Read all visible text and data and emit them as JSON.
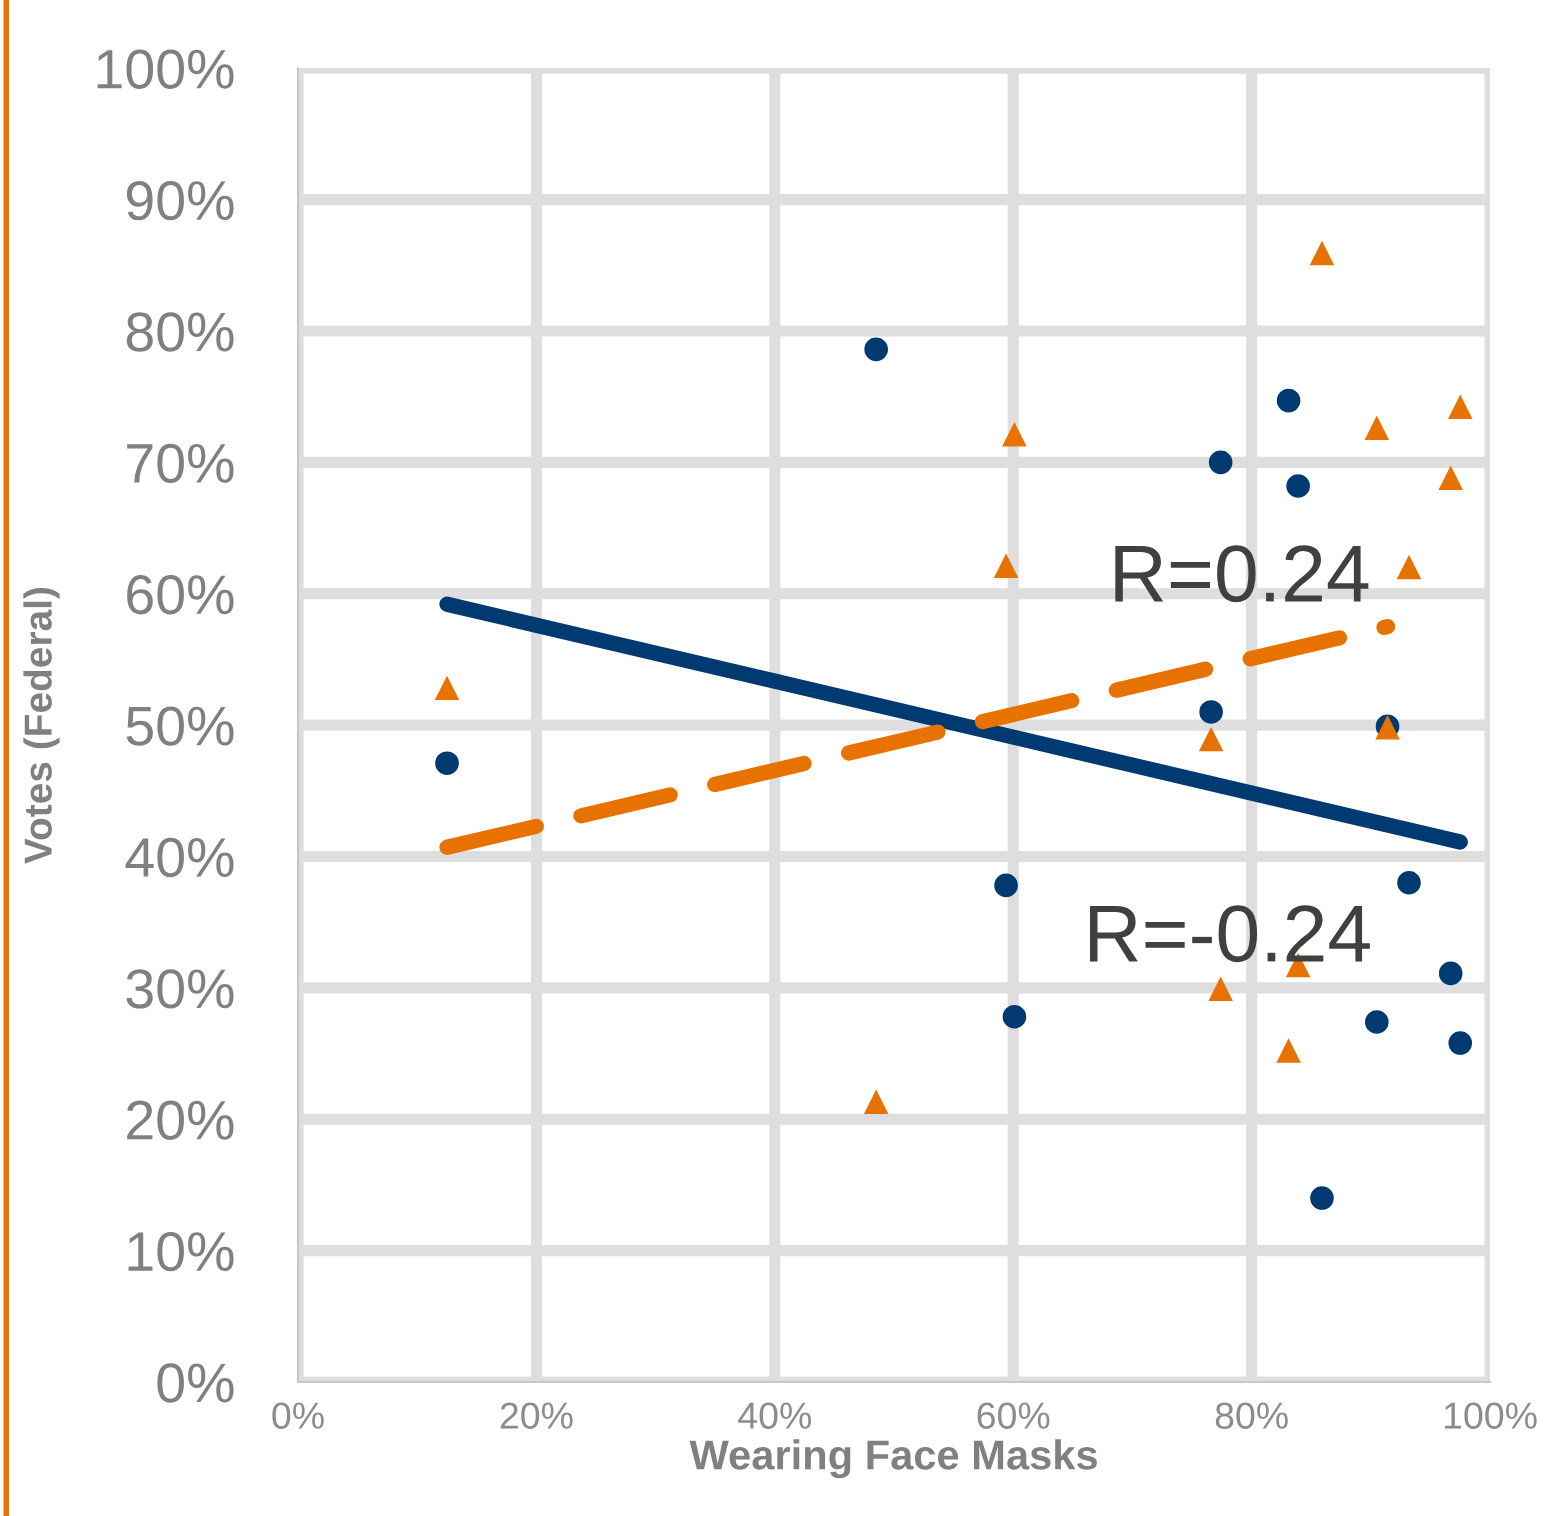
{
  "chart_data": {
    "type": "scatter",
    "xlabel": "Wearing Face Masks",
    "ylabel": "Votes (Federal)",
    "x": [
      12.5,
      48.5,
      59.4,
      60.1,
      76.6,
      77.4,
      83.1,
      83.9,
      85.9,
      90.5,
      91.4,
      93.2,
      96.7,
      97.5
    ],
    "series": [
      {
        "color": "#003a70",
        "marker": "circle",
        "values": [
          47.1,
          78.6,
          37.8,
          27.8,
          51.0,
          70.0,
          74.7,
          68.2,
          14.0,
          27.4,
          49.9,
          38.0,
          31.1,
          25.8
        ]
      },
      {
        "color": "#e87200",
        "marker": "triangle",
        "x": [
          12.5,
          48.5,
          59.4,
          60.1,
          76.6,
          77.4,
          83.1,
          83.9,
          85.9,
          90.5,
          91.4,
          93.2,
          96.7,
          97.5
        ],
        "values": [
          52.8,
          21.3,
          62.1,
          72.1,
          48.9,
          29.9,
          25.2,
          31.7,
          85.9,
          72.6,
          49.8,
          62.0,
          68.8,
          74.2
        ]
      },
      {
        "type": "line",
        "color": "#003a70",
        "line_style": "solid",
        "x": [
          12.5,
          97.5
        ],
        "values": [
          59.2,
          41.1
        ]
      },
      {
        "type": "line",
        "color": "#e87200",
        "line_style": "dashed",
        "x": [
          12.5,
          91.4
        ],
        "values": [
          40.7,
          57.5
        ]
      }
    ],
    "annotations": [
      "R=0.24",
      "R=-0.24"
    ],
    "xlim": [
      0,
      100
    ],
    "ylim": [
      0,
      100
    ],
    "xticks": [
      {
        "value": 0,
        "label": "0%"
      },
      {
        "value": 20,
        "label": "20%"
      },
      {
        "value": 40,
        "label": "40%"
      },
      {
        "value": 60,
        "label": "60%"
      },
      {
        "value": 80,
        "label": "80%"
      },
      {
        "value": 100,
        "label": "100%"
      }
    ],
    "yticks": [
      {
        "value": 0,
        "label": "0%"
      },
      {
        "value": 10,
        "label": "10%"
      },
      {
        "value": 20,
        "label": "20%"
      },
      {
        "value": 30,
        "label": "30%"
      },
      {
        "value": 40,
        "label": "40%"
      },
      {
        "value": 50,
        "label": "50%"
      },
      {
        "value": 60,
        "label": "60%"
      },
      {
        "value": 70,
        "label": "70%"
      },
      {
        "value": 80,
        "label": "80%"
      },
      {
        "value": 90,
        "label": "90%"
      },
      {
        "value": 100,
        "label": "100%"
      }
    ],
    "grid": true
  }
}
